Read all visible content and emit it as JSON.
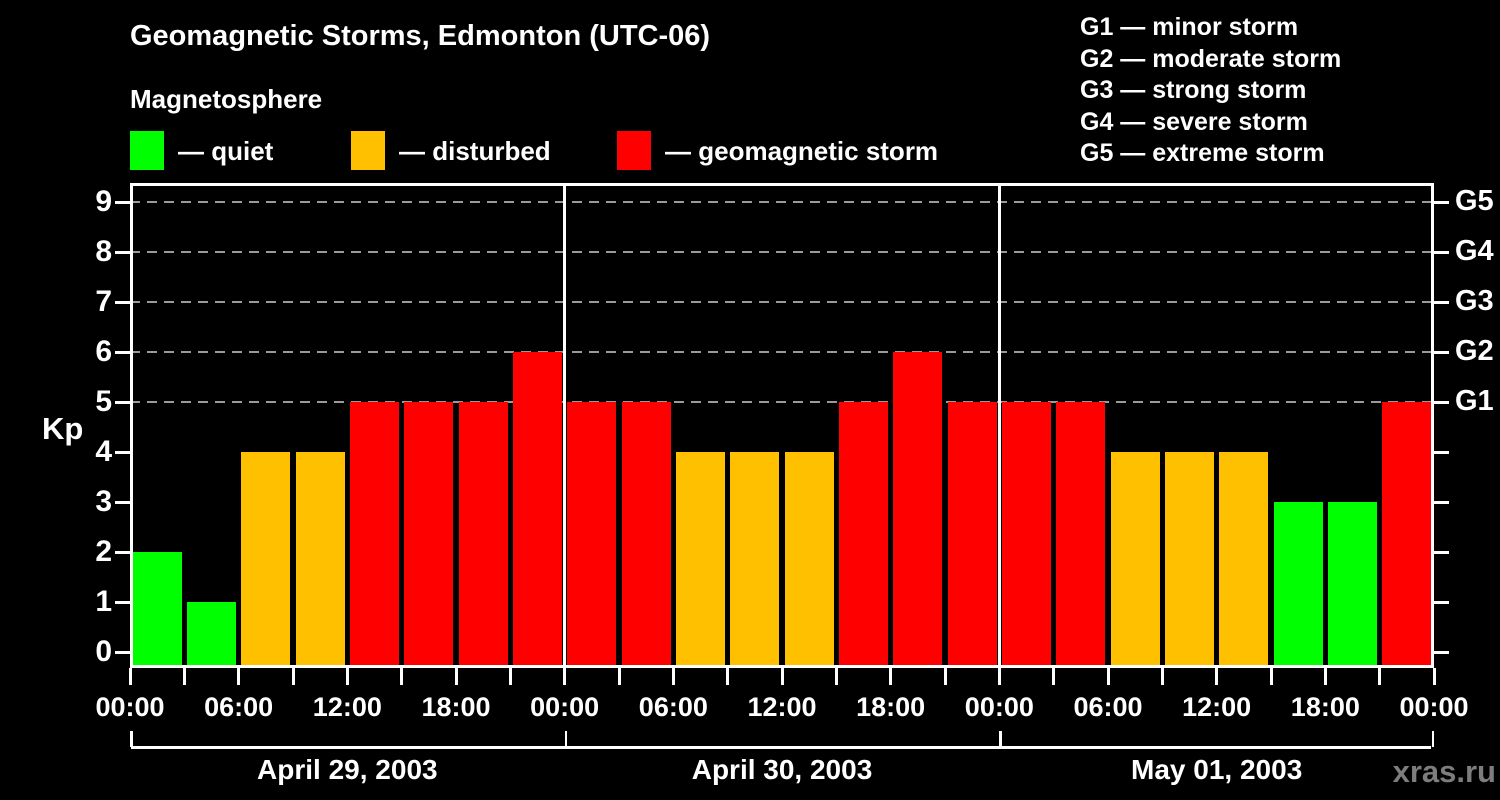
{
  "title": "Geomagnetic Storms, Edmonton (UTC-06)",
  "subtitle": "Magnetosphere",
  "legend": {
    "quiet": {
      "label": "— quiet",
      "color": "#00ff00"
    },
    "disturbed": {
      "label": "— disturbed",
      "color": "#ffc000"
    },
    "storm": {
      "label": "— geomagnetic storm",
      "color": "#ff0000"
    }
  },
  "storm_scale_legend": {
    "g1": "G1 — minor storm",
    "g2": "G2 — moderate storm",
    "g3": "G3 — strong storm",
    "g4": "G4 — severe storm",
    "g5": "G5 — extreme storm"
  },
  "watermark": "xras.ru",
  "chart_data": {
    "type": "bar",
    "title": "Geomagnetic Storms, Edmonton (UTC-06)",
    "y_axis_label": "Kp",
    "ylim": [
      -0.32,
      9.38
    ],
    "y_ticks_left": [
      0,
      1,
      2,
      3,
      4,
      5,
      6,
      7,
      8,
      9
    ],
    "y_ticks_right": [
      {
        "value": 5,
        "label": "G1"
      },
      {
        "value": 6,
        "label": "G2"
      },
      {
        "value": 7,
        "label": "G3"
      },
      {
        "value": 8,
        "label": "G4"
      },
      {
        "value": 9,
        "label": "G5"
      }
    ],
    "gridlines_at": [
      5,
      6,
      7,
      8,
      9
    ],
    "grid_on": true,
    "hours_per_bar": 3,
    "x_tick_interval_hours": 3,
    "x_tick_labels": [
      "00:00",
      "06:00",
      "12:00",
      "18:00",
      "00:00",
      "06:00",
      "12:00",
      "18:00",
      "00:00",
      "06:00",
      "12:00",
      "18:00",
      "00:00"
    ],
    "days": [
      {
        "label": "April 29, 2003",
        "kp_values": [
          2,
          1,
          4,
          4,
          5,
          5,
          5,
          6
        ]
      },
      {
        "label": "April 30, 2003",
        "kp_values": [
          5,
          5,
          4,
          4,
          4,
          5,
          6,
          5
        ]
      },
      {
        "label": "May 01, 2003",
        "kp_values": [
          5,
          5,
          4,
          4,
          4,
          3,
          3,
          5
        ]
      }
    ],
    "color_rule": {
      "quiet_max": 3,
      "disturbed_equal": 4,
      "storm_min": 5
    },
    "bar_colors": {
      "quiet": "#00ff00",
      "disturbed": "#ffc000",
      "storm": "#ff0000"
    }
  }
}
